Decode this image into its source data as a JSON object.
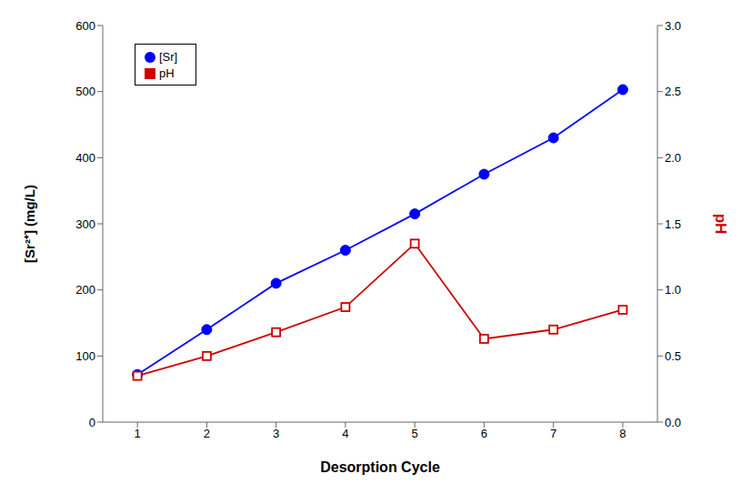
{
  "chart_data": {
    "type": "line",
    "xlabel": "Desorption Cycle",
    "ylabel": "[Sr²⁺] (mg/L)",
    "y2label": "pH",
    "x": [
      1,
      2,
      3,
      4,
      5,
      6,
      7,
      8
    ],
    "xlim": [
      0.5,
      8.5
    ],
    "xticks": [
      1,
      2,
      3,
      4,
      5,
      6,
      7,
      8
    ],
    "ylim": [
      0,
      600
    ],
    "yticks": [
      0,
      100,
      200,
      300,
      400,
      500,
      600
    ],
    "y2lim": [
      0.0,
      3.0
    ],
    "y2ticks": [
      {
        "value": 0,
        "label": "0.0"
      },
      0.5,
      {
        "value": 1,
        "label": "1.0"
      },
      1.5,
      {
        "value": 2,
        "label": "2.0"
      },
      2.5,
      {
        "value": 3,
        "label": "3.0"
      }
    ],
    "series": [
      {
        "name": "[Sr]",
        "color": "#0000ff",
        "marker": "circle",
        "values": [
          72,
          140,
          210,
          260,
          315,
          375,
          430,
          503
        ]
      },
      {
        "name": "pH",
        "color": "#cc0000",
        "marker": "square",
        "axis": "y2",
        "values": [
          0.35,
          0.5,
          0.68,
          0.87,
          1.35,
          0.63,
          0.7,
          0.85
        ]
      }
    ],
    "grid": false,
    "legend": "upper left"
  }
}
